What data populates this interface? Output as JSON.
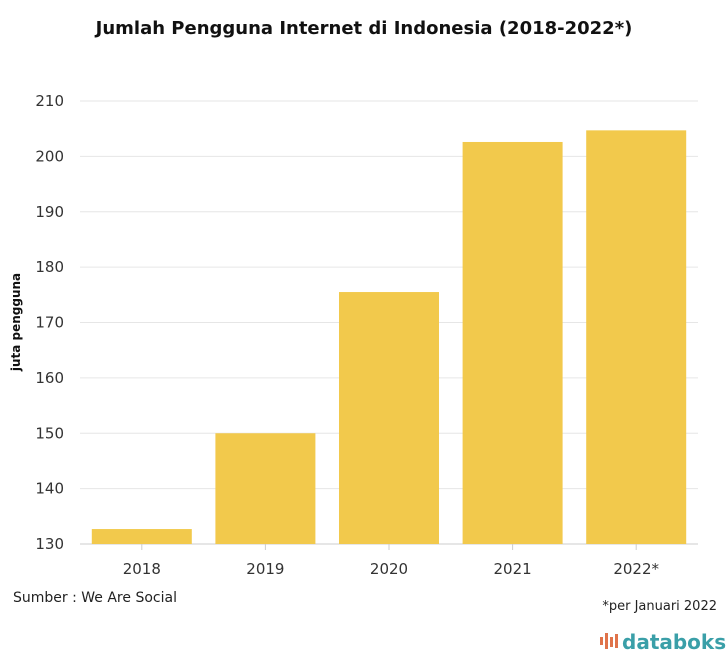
{
  "chart_data": {
    "type": "bar",
    "title": "Jumlah Pengguna Internet di Indonesia (2018-2022*)",
    "xlabel": "",
    "ylabel": "juta pengguna",
    "categories": [
      "2018",
      "2019",
      "2020",
      "2021",
      "2022*"
    ],
    "values": [
      132.7,
      150,
      175.5,
      202.6,
      204.7
    ],
    "ylim": [
      130,
      210
    ],
    "yticks": [
      130,
      140,
      150,
      160,
      170,
      180,
      190,
      200,
      210
    ],
    "grid": true,
    "bar_color": "#f2c94c"
  },
  "source": "Sumber : We Are Social",
  "note": "*per Januari 2022",
  "brand": {
    "name": "databoks",
    "color": "#3a9fa8",
    "icon_color": "#e0734a"
  }
}
